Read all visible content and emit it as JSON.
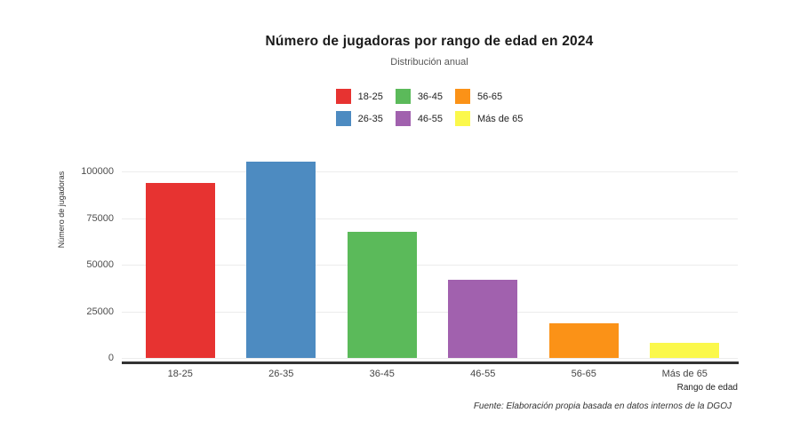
{
  "chart_data": {
    "type": "bar",
    "title": "Número de jugadoras por rango de edad en 2024",
    "subtitle": "Distribución anual",
    "categories": [
      "18-25",
      "26-35",
      "36-45",
      "46-55",
      "56-65",
      "Más de 65"
    ],
    "values": [
      94000,
      105000,
      67500,
      42000,
      18500,
      8000
    ],
    "colors": [
      "#e73331",
      "#4d8bc1",
      "#5bba5a",
      "#a161ae",
      "#fb9217",
      "#fbf84b"
    ],
    "xlabel": "Rango de edad",
    "ylabel": "Número de jugadoras",
    "ylim": [
      0,
      110000
    ],
    "yticks": [
      0,
      25000,
      50000,
      75000,
      100000
    ],
    "grid": true,
    "legend_position": "top-center",
    "legend_rows": 2,
    "caption": "Fuente: Elaboración propia basada en datos internos de la DGOJ"
  }
}
